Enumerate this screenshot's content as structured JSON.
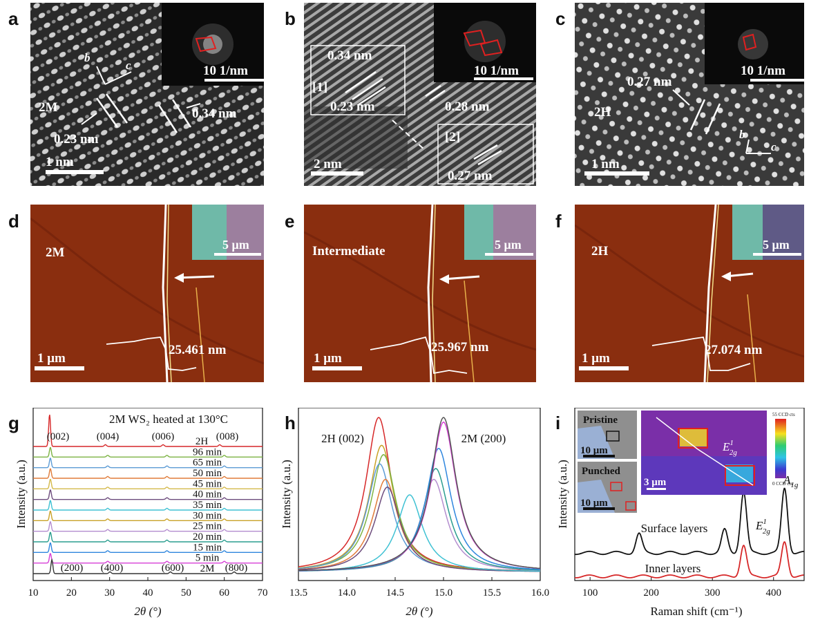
{
  "panel_letters": [
    "a",
    "b",
    "c",
    "d",
    "e",
    "f",
    "g",
    "h",
    "i"
  ],
  "panel_a": {
    "phase": "2M",
    "d1": "0.23 nm",
    "d2": "0.34 nm",
    "axis_b": "b",
    "axis_c": "c",
    "scalebar": "1 nm",
    "fft_scale": "10 1/nm"
  },
  "panel_b": {
    "d_034": "0.34 nm",
    "d_023": "0.23 nm",
    "d_028": "0.28 nm",
    "d_027": "0.27 nm",
    "region1": "[1]",
    "region2": "[2]",
    "scalebar": "2 nm",
    "fft_scale": "10 1/nm"
  },
  "panel_c": {
    "phase": "2H",
    "d1": "0.27 nm",
    "axis_b": "b",
    "axis_c": "c",
    "scalebar": "1 nm",
    "fft_scale": "10 1/nm"
  },
  "panel_d": {
    "label": "2M",
    "height": "25.461 nm",
    "scalebar": "1 μm",
    "inset_scale": "5 μm"
  },
  "panel_e": {
    "label": "Intermediate",
    "height": "25.967 nm",
    "scalebar": "1 μm",
    "inset_scale": "5 μm"
  },
  "panel_f": {
    "label": "2H",
    "height": "27.074 nm",
    "scalebar": "1 μm",
    "inset_scale": "5 μm"
  },
  "colors": {
    "afm_bg": "#8a2e0f",
    "afm_dark": "#6e200a",
    "inset_green": "#6fb9a8",
    "inset_purple": "#9c7f9e",
    "stem_bg": "#3a3a3a"
  },
  "chart_data": [
    {
      "type": "line",
      "panel": "g",
      "title": "2M WS₂ heated at 130°C",
      "xlabel": "2θ (°)",
      "ylabel": "Intensity (a.u.)",
      "xlim": [
        10,
        70
      ],
      "xticks": [
        "10",
        "20",
        "30",
        "40",
        "50",
        "60",
        "70"
      ],
      "peaks_top": [
        "(002)",
        "(004)",
        "(006)",
        "(008)"
      ],
      "peaks_bottom": [
        "(200)",
        "(400)",
        "(600)",
        "(800)"
      ],
      "peak_positions_2H": [
        14.3,
        28.9,
        44.0,
        58.8
      ],
      "peak_positions_2M": [
        14.9,
        30.1,
        45.9,
        62.6
      ],
      "series": [
        {
          "name": "2H",
          "color": "#d62728"
        },
        {
          "name": "96 min",
          "color": "#7cb342"
        },
        {
          "name": "65 min",
          "color": "#5b9bd5"
        },
        {
          "name": "50 min",
          "color": "#e07b39"
        },
        {
          "name": "45 min",
          "color": "#d4b94a"
        },
        {
          "name": "40 min",
          "color": "#6d4c7d"
        },
        {
          "name": "35 min",
          "color": "#3ec1d3"
        },
        {
          "name": "30 min",
          "color": "#c9a227"
        },
        {
          "name": "25 min",
          "color": "#b48ecf"
        },
        {
          "name": "20 min",
          "color": "#2a9d8f"
        },
        {
          "name": "15 min",
          "color": "#2e86de"
        },
        {
          "name": "5 min",
          "color": "#d63fd6"
        },
        {
          "name": "2M",
          "color": "#333333"
        }
      ]
    },
    {
      "type": "line",
      "panel": "h",
      "xlabel": "2θ (°)",
      "ylabel": "Intensity (a.u.)",
      "xlim": [
        13.5,
        16.0
      ],
      "xticks": [
        "13.5",
        "14.0",
        "14.5",
        "15.0",
        "15.5",
        "16.0"
      ],
      "annotations": [
        "2H (002)",
        "2M (200)"
      ],
      "curves": [
        {
          "color": "#d62728",
          "center": 14.33,
          "height": 1.0
        },
        {
          "color": "#c9a227",
          "center": 14.36,
          "height": 0.82
        },
        {
          "color": "#7cb342",
          "center": 14.38,
          "height": 0.76
        },
        {
          "color": "#5b9bd5",
          "center": 14.34,
          "height": 0.7
        },
        {
          "color": "#e07b39",
          "center": 14.4,
          "height": 0.6
        },
        {
          "color": "#6d4c7d",
          "center": 14.42,
          "height": 0.55
        },
        {
          "color": "#3ec1d3",
          "center": 14.65,
          "height": 0.5
        },
        {
          "color": "#b48ecf",
          "center": 14.9,
          "height": 0.6
        },
        {
          "color": "#2a9d8f",
          "center": 14.92,
          "height": 0.67
        },
        {
          "color": "#2e86de",
          "center": 14.95,
          "height": 0.8
        },
        {
          "color": "#d63fd6",
          "center": 15.0,
          "height": 0.97
        },
        {
          "color": "#555555",
          "center": 15.0,
          "height": 1.0
        }
      ]
    },
    {
      "type": "line",
      "panel": "i",
      "xlabel": "Raman shift (cm⁻¹)",
      "ylabel": "Intensity (a.u.)",
      "xlim": [
        75,
        450
      ],
      "xticks": [
        "100",
        "200",
        "300",
        "400"
      ],
      "series": [
        {
          "name": "Surface layers",
          "color": "#111111",
          "peaks": [
            [
              180,
              0.25
            ],
            [
              320,
              0.3
            ],
            [
              351,
              0.8
            ],
            [
              418,
              0.85
            ]
          ]
        },
        {
          "name": "Inner layers",
          "color": "#d62728",
          "peaks": [
            [
              351,
              0.45
            ],
            [
              418,
              0.5
            ]
          ]
        }
      ],
      "peak_labels": [
        "E",
        "A"
      ],
      "peak_label_sub": [
        "2g",
        "1g"
      ],
      "peak_label_sup": [
        "1"
      ],
      "inset_labels": [
        "Pristine",
        "Punched"
      ],
      "inset_scales": [
        "10 μm",
        "10 μm",
        "3 μm"
      ],
      "map_label": "E",
      "map_label_sub": "2g",
      "map_label_sup": "1",
      "colorbar_max": "55 CCD cts",
      "colorbar_min": "0 CCD cts"
    }
  ]
}
